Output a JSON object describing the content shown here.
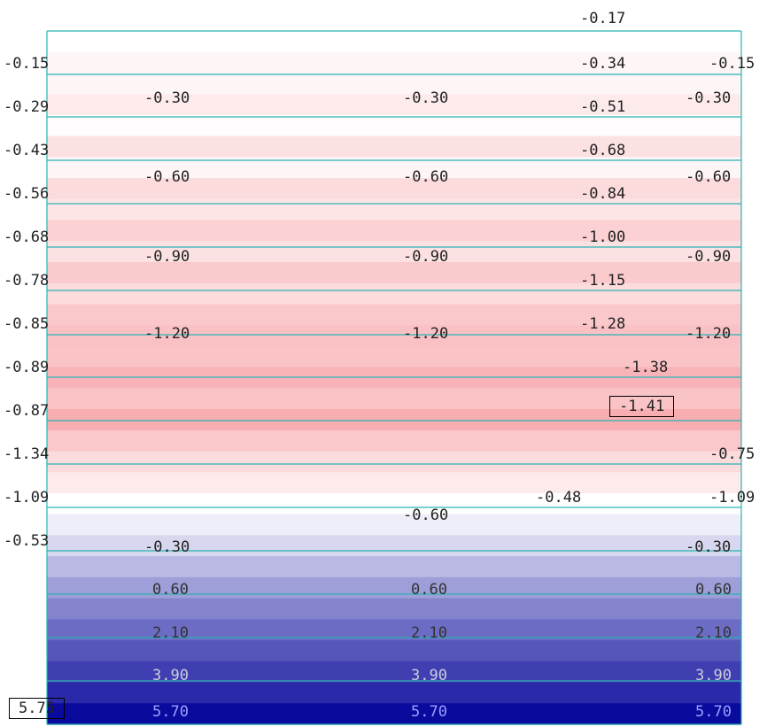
{
  "chart_data": {
    "type": "heatmap",
    "colors": {
      "frame": "#2ab3b3",
      "negative_max": "#f7a3a8",
      "positive_max": "#0a0a9c",
      "zero": "#ffffff",
      "text": "#222222",
      "highlight_border": "#000000"
    },
    "bands": [
      {
        "value": 0.0
      },
      {
        "value": -0.15
      },
      {
        "value": -0.15
      },
      {
        "value": -0.3
      },
      {
        "value": -0.03
      },
      {
        "value": -0.45
      },
      {
        "value": -0.15
      },
      {
        "value": -0.55
      },
      {
        "value": -0.4
      },
      {
        "value": -0.7
      },
      {
        "value": -0.45
      },
      {
        "value": -0.8
      },
      {
        "value": -0.55
      },
      {
        "value": -0.85
      },
      {
        "value": -0.95
      },
      {
        "value": -0.9
      },
      {
        "value": -1.15
      },
      {
        "value": -0.9
      },
      {
        "value": -1.25
      },
      {
        "value": -0.85
      },
      {
        "value": -0.55
      },
      {
        "value": -0.3
      },
      {
        "value": 0.0
      },
      {
        "value": 0.2
      },
      {
        "value": 0.6
      },
      {
        "value": 1.2
      },
      {
        "value": 1.8
      },
      {
        "value": 2.4
      },
      {
        "value": 3.0
      },
      {
        "value": 3.6
      },
      {
        "value": 4.2
      },
      {
        "value": 4.8
      },
      {
        "value": 5.7
      }
    ],
    "left_labels": [
      "-0.15",
      "-0.29",
      "-0.43",
      "-0.56",
      "-0.68",
      "-0.78",
      "-0.85",
      "-0.89",
      "-0.87",
      "-1.34",
      "-1.09",
      "-0.53"
    ],
    "corner_label": "5.75",
    "inner_rows": [
      {
        "labels": [
          "-0.30",
          "-0.30",
          "-0.30"
        ]
      },
      {
        "labels": [
          "-0.60",
          "-0.60",
          "-0.60"
        ]
      },
      {
        "labels": [
          "-0.90",
          "-0.90",
          "-0.90"
        ]
      },
      {
        "labels": [
          "-1.20",
          "-1.20",
          "-1.20"
        ]
      }
    ],
    "right_col_labels": [
      "-0.17",
      "-0.34",
      "-0.51",
      "-0.68",
      "-0.84",
      "-1.00",
      "-1.15",
      "-1.28",
      "-1.38",
      "-1.41"
    ],
    "highlight_label": "-1.41",
    "right_edge_labels": [
      "-0.15",
      "-0.30",
      "-0.60",
      "-0.90",
      "-1.20",
      "-0.75",
      "-1.09",
      "-0.30"
    ],
    "misc_labels": [
      "-0.48",
      "-0.60",
      "-0.30"
    ],
    "bottom_rows": [
      {
        "labels": [
          "0.60",
          "0.60",
          "0.60"
        ]
      },
      {
        "labels": [
          "2.10",
          "2.10",
          "2.10"
        ]
      },
      {
        "labels": [
          "3.90",
          "3.90",
          "3.90"
        ]
      },
      {
        "labels": [
          "5.70",
          "5.70",
          "5.70"
        ]
      }
    ]
  }
}
